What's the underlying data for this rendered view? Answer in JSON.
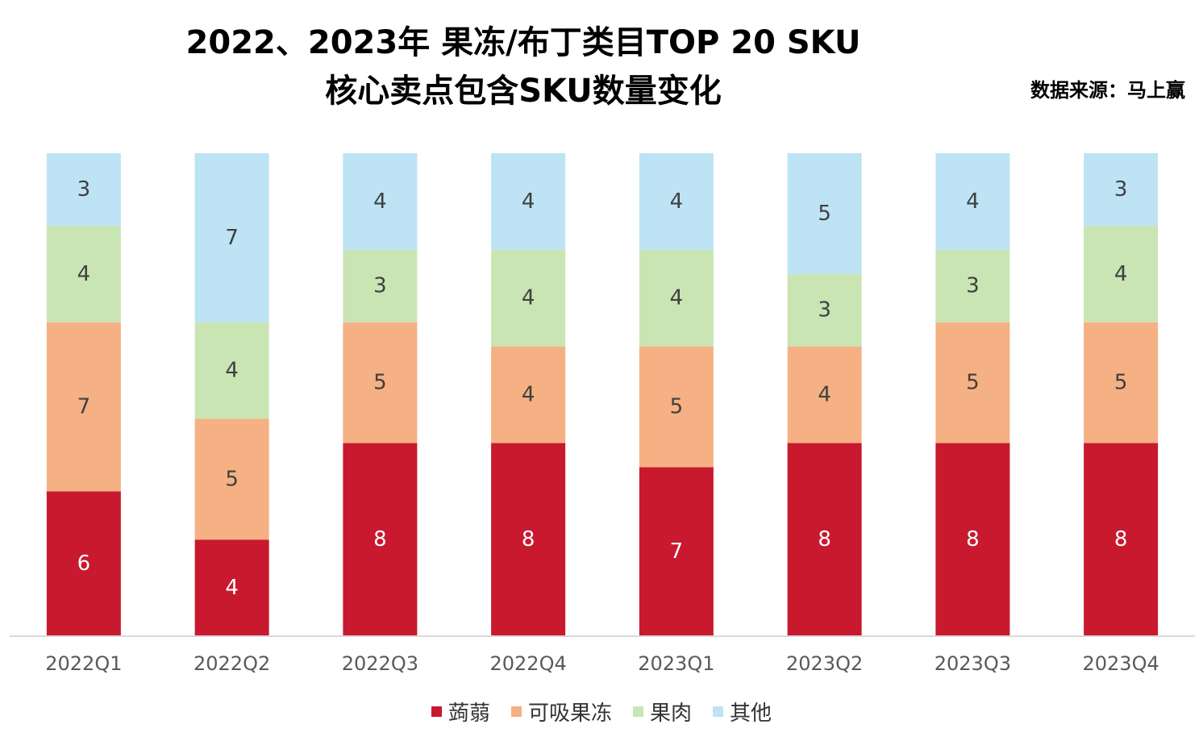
{
  "chart_data": {
    "type": "bar",
    "stacked": true,
    "title": "2022、2023年 果冻/布丁类目TOP 20 SKU",
    "subtitle": "核心卖点包含SKU数量变化",
    "source": "数据来源：马上赢",
    "categories": [
      "2022Q1",
      "2022Q2",
      "2022Q3",
      "2022Q4",
      "2023Q1",
      "2023Q2",
      "2023Q3",
      "2023Q4"
    ],
    "series": [
      {
        "name": "蒟蒻",
        "color": "#C8192F",
        "label_color": "#ffffff",
        "values": [
          6,
          4,
          8,
          8,
          7,
          8,
          8,
          8
        ]
      },
      {
        "name": "可吸果冻",
        "color": "#F5B183",
        "label_color": "#404040",
        "values": [
          7,
          5,
          5,
          4,
          5,
          4,
          5,
          5
        ]
      },
      {
        "name": "果肉",
        "color": "#C9E5B4",
        "label_color": "#404040",
        "values": [
          4,
          4,
          3,
          4,
          4,
          3,
          3,
          4
        ]
      },
      {
        "name": "其他",
        "color": "#BDE3F5",
        "label_color": "#404040",
        "values": [
          3,
          7,
          4,
          4,
          4,
          5,
          4,
          3
        ]
      }
    ],
    "ylim": [
      0,
      20
    ],
    "legend_position": "bottom",
    "grid": false
  }
}
